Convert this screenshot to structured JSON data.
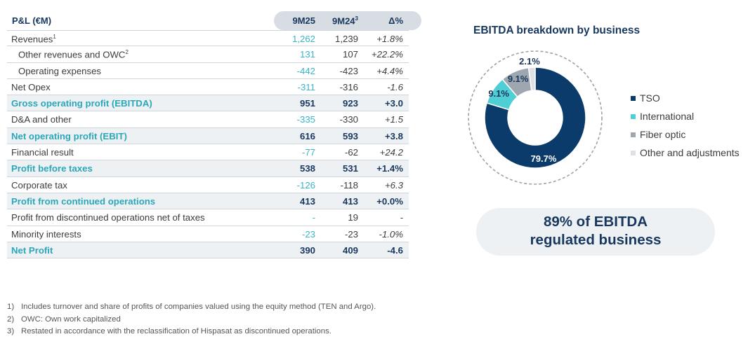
{
  "table": {
    "title": "P&L (€M)",
    "columns": [
      "9M25",
      "9M24",
      "Δ%"
    ],
    "column_sup": [
      "",
      "3",
      ""
    ],
    "rows": [
      {
        "label": "Revenues",
        "sup": "1",
        "indent": false,
        "bold": false,
        "v1": "1,262",
        "v2": "1,239",
        "v3": "+1.8%"
      },
      {
        "label": "Other revenues and OWC",
        "sup": "2",
        "indent": true,
        "bold": false,
        "v1": "131",
        "v2": "107",
        "v3": "+22.2%"
      },
      {
        "label": "Operating expenses",
        "sup": "",
        "indent": true,
        "bold": false,
        "v1": "-442",
        "v2": "-423",
        "v3": "+4.4%"
      },
      {
        "label": "Net Opex",
        "sup": "",
        "indent": false,
        "bold": false,
        "v1": "-311",
        "v2": "-316",
        "v3": "-1.6"
      },
      {
        "label": "Gross operating profit (EBITDA)",
        "sup": "",
        "indent": false,
        "bold": true,
        "v1": "951",
        "v2": "923",
        "v3": "+3.0"
      },
      {
        "label": "D&A and other",
        "sup": "",
        "indent": false,
        "bold": false,
        "v1": "-335",
        "v2": "-330",
        "v3": "+1.5"
      },
      {
        "label": "Net operating profit (EBIT)",
        "sup": "",
        "indent": false,
        "bold": true,
        "v1": "616",
        "v2": "593",
        "v3": "+3.8"
      },
      {
        "label": "Financial result",
        "sup": "",
        "indent": false,
        "bold": false,
        "v1": "-77",
        "v2": "-62",
        "v3": "+24.2"
      },
      {
        "label": "Profit before taxes",
        "sup": "",
        "indent": false,
        "bold": true,
        "v1": "538",
        "v2": "531",
        "v3": "+1.4%"
      },
      {
        "label": "Corporate tax",
        "sup": "",
        "indent": false,
        "bold": false,
        "v1": "-126",
        "v2": "-118",
        "v3": "+6.3"
      },
      {
        "label": "Profit from continued operations",
        "sup": "",
        "indent": false,
        "bold": true,
        "v1": "413",
        "v2": "413",
        "v3": "+0.0%"
      },
      {
        "label": "Profit from discontinued operations net of taxes",
        "sup": "",
        "indent": false,
        "bold": false,
        "v1": "-",
        "v2": "19",
        "v3": "-"
      },
      {
        "label": "Minority interests",
        "sup": "",
        "indent": false,
        "bold": false,
        "v1": "-23",
        "v2": "-23",
        "v3": "-1.0%"
      },
      {
        "label": "Net Profit",
        "sup": "",
        "indent": false,
        "bold": true,
        "v1": "390",
        "v2": "409",
        "v3": "-4.6"
      }
    ]
  },
  "footnotes": [
    {
      "num": "1)",
      "text": "Includes turnover and share of profits of companies valued using the equity method (TEN and Argo)."
    },
    {
      "num": "2)",
      "text": "OWC: Own work capitalized"
    },
    {
      "num": "3)",
      "text": "Restated in accordance with the reclassification of Hispasat as discontinued operations."
    }
  ],
  "callout": {
    "line1": "89% of EBITDA",
    "line2": "regulated business"
  },
  "chart_data": {
    "type": "pie",
    "title": "EBITDA breakdown by business",
    "donut": true,
    "categories": [
      "TSO",
      "International",
      "Fiber optic",
      "Other and adjustments"
    ],
    "values": [
      79.7,
      9.1,
      9.1,
      2.1
    ],
    "data_labels": [
      "79.7%",
      "9.1%",
      "9.1%",
      "2.1%"
    ],
    "colors": [
      "#0b3b6b",
      "#4fcfd5",
      "#9ea7b0",
      "#dde1e5"
    ],
    "legend": "right"
  }
}
